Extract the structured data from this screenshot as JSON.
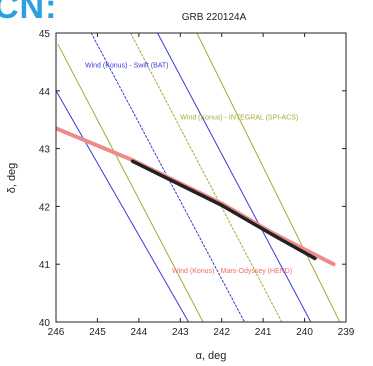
{
  "corner_text": "CN:",
  "chart_data": {
    "type": "line",
    "title": "GRB 220124A",
    "xlabel": "α, deg",
    "ylabel": "δ, deg",
    "xlim": [
      246,
      239
    ],
    "ylim": [
      40,
      45
    ],
    "x_ticks": [
      246,
      245,
      244,
      243,
      242,
      241,
      240,
      239
    ],
    "y_ticks": [
      40,
      41,
      42,
      43,
      44,
      45
    ],
    "grid": false,
    "series": [
      {
        "color": "#3a3ad8",
        "dash": "solid",
        "points": [
          [
            246.0,
            44.0
          ],
          [
            242.8,
            40.0
          ]
        ]
      },
      {
        "color": "#3a3ad8",
        "dash": "dotted",
        "points": [
          [
            245.15,
            45.0
          ],
          [
            241.45,
            40.0
          ]
        ]
      },
      {
        "color": "#3a3ad8",
        "dash": "solid",
        "points": [
          [
            243.55,
            45.0
          ],
          [
            239.85,
            40.0
          ]
        ]
      },
      {
        "color": "#a8a83a",
        "dash": "solid",
        "points": [
          [
            245.95,
            44.8
          ],
          [
            242.45,
            40.0
          ]
        ]
      },
      {
        "color": "#a8a83a",
        "dash": "dotted",
        "points": [
          [
            244.2,
            45.0
          ],
          [
            240.55,
            40.0
          ]
        ]
      },
      {
        "color": "#a8a83a",
        "dash": "solid",
        "points": [
          [
            242.6,
            45.0
          ],
          [
            239.15,
            40.0
          ]
        ]
      },
      {
        "color": "#f08a8a",
        "dash": "solid",
        "width": 4,
        "points": [
          [
            246.0,
            43.35
          ],
          [
            244.15,
            42.8
          ],
          [
            242.0,
            42.05
          ],
          [
            240.8,
            41.55
          ],
          [
            239.3,
            41.0
          ]
        ]
      },
      {
        "color": "#222222",
        "dash": "solid",
        "width": 3.5,
        "points": [
          [
            244.15,
            42.78
          ],
          [
            242.0,
            42.02
          ],
          [
            240.8,
            41.52
          ],
          [
            239.75,
            41.1
          ]
        ]
      }
    ],
    "annotations": [
      {
        "text": "Wind (Konus) - Swift (BAT)",
        "color": "#3a3ad8",
        "x": 245.3,
        "y": 44.4
      },
      {
        "text": "Wind (Konus) - INTEGRAL (SPI-ACS)",
        "color": "#a8a83a",
        "x": 243.0,
        "y": 43.5
      },
      {
        "text": "Wind (Konus) - Mars-Odyssey (HEND)",
        "color": "#f06868",
        "x": 243.2,
        "y": 40.85
      }
    ]
  }
}
